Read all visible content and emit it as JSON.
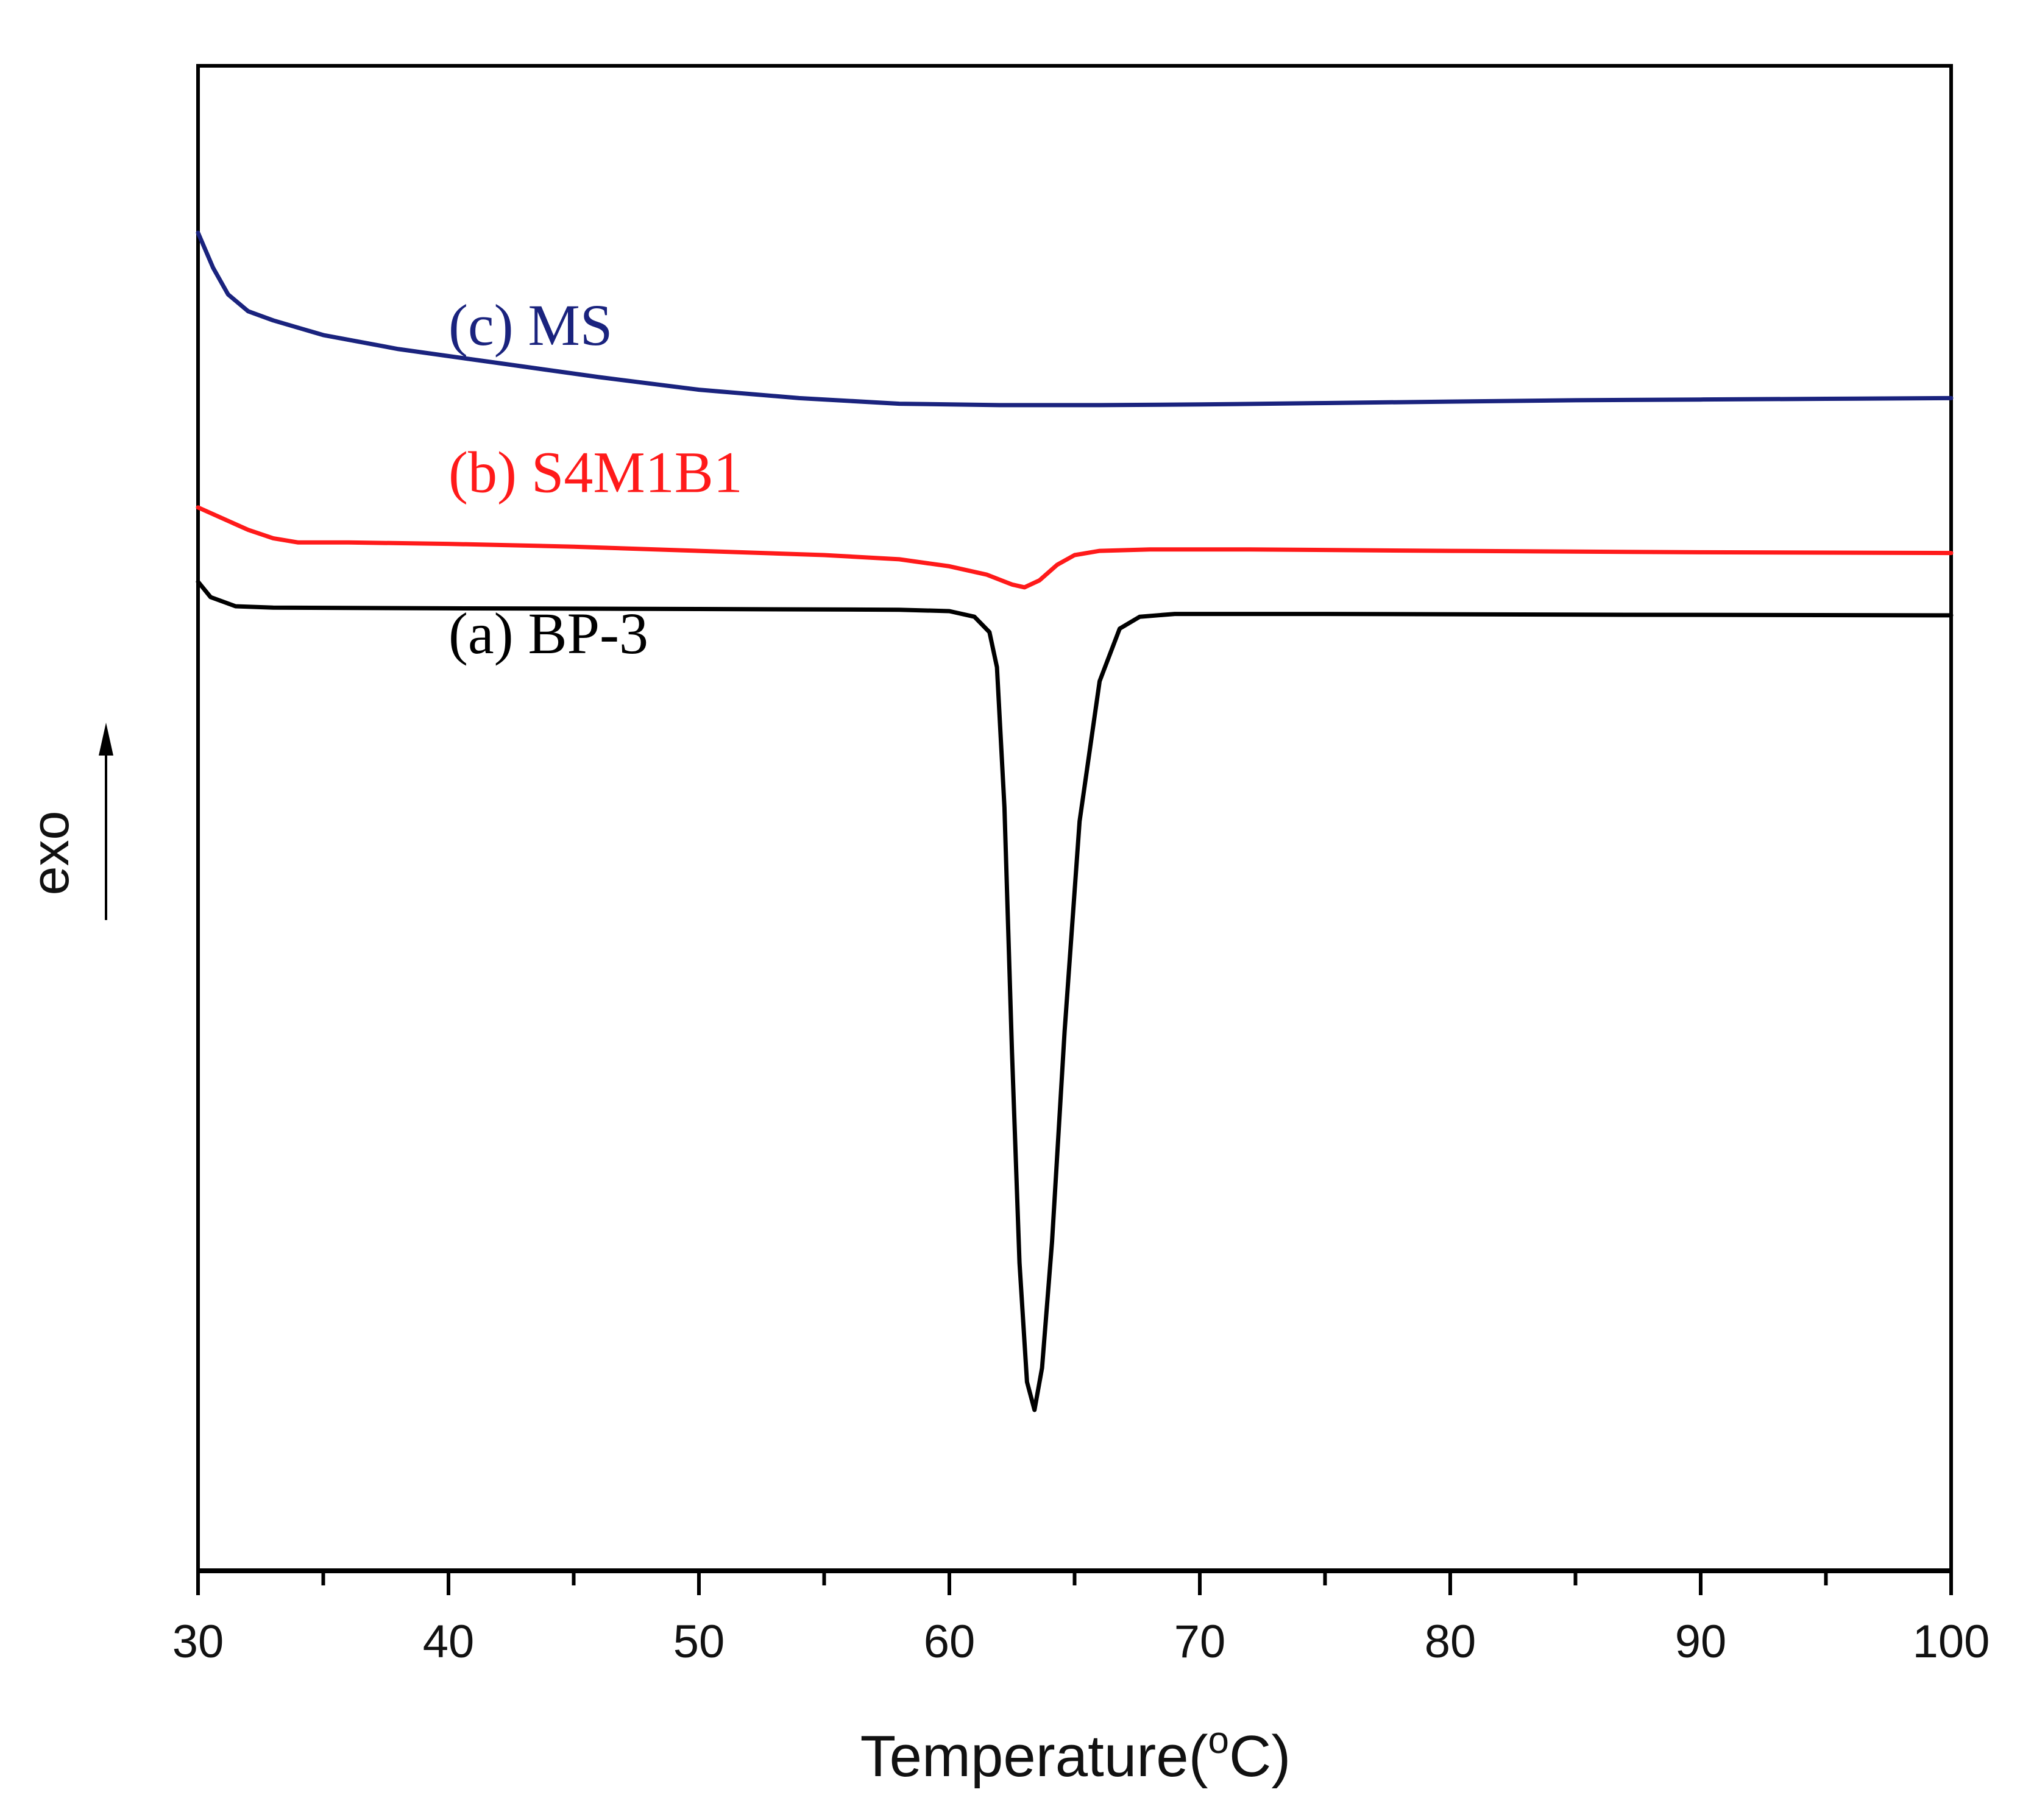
{
  "chart_data": {
    "type": "line",
    "title": "",
    "xlabel_base": "Temperature(",
    "xlabel_degree": "o",
    "xlabel_unit": "C)",
    "ylabel": "exo",
    "xlim": [
      30,
      100
    ],
    "x_ticks": [
      "30",
      "40",
      "50",
      "60",
      "70",
      "80",
      "90",
      "100"
    ],
    "y_ticks": [],
    "grid": false,
    "series": [
      {
        "key": "c",
        "name": "(c) MS",
        "color": "#1a237e",
        "label_at": [
          40,
          7.6
        ],
        "points": [
          [
            30,
            9.2
          ],
          [
            30.6,
            8.7
          ],
          [
            31.2,
            8.32
          ],
          [
            32,
            8.08
          ],
          [
            33,
            7.95
          ],
          [
            35,
            7.74
          ],
          [
            38,
            7.54
          ],
          [
            42,
            7.34
          ],
          [
            46,
            7.14
          ],
          [
            50,
            6.96
          ],
          [
            54,
            6.84
          ],
          [
            58,
            6.76
          ],
          [
            62,
            6.74
          ],
          [
            66,
            6.74
          ],
          [
            70,
            6.75
          ],
          [
            75,
            6.77
          ],
          [
            80,
            6.79
          ],
          [
            85,
            6.81
          ],
          [
            90,
            6.82
          ],
          [
            95,
            6.83
          ],
          [
            100,
            6.84
          ]
        ]
      },
      {
        "key": "b",
        "name": "(b) S4M1B1",
        "color": "#ff1a1a",
        "label_at": [
          40,
          5.5
        ],
        "points": [
          [
            30,
            5.28
          ],
          [
            31,
            5.12
          ],
          [
            32,
            4.96
          ],
          [
            33,
            4.84
          ],
          [
            34,
            4.78
          ],
          [
            36,
            4.78
          ],
          [
            40,
            4.76
          ],
          [
            45,
            4.72
          ],
          [
            50,
            4.66
          ],
          [
            55,
            4.6
          ],
          [
            58,
            4.54
          ],
          [
            60,
            4.44
          ],
          [
            61.5,
            4.32
          ],
          [
            62.5,
            4.18
          ],
          [
            63,
            4.14
          ],
          [
            63.6,
            4.24
          ],
          [
            64.3,
            4.46
          ],
          [
            65,
            4.6
          ],
          [
            66,
            4.66
          ],
          [
            68,
            4.68
          ],
          [
            72,
            4.68
          ],
          [
            80,
            4.66
          ],
          [
            90,
            4.64
          ],
          [
            100,
            4.63
          ]
        ]
      },
      {
        "key": "a",
        "name": "(a) BP-3",
        "color": "#000000",
        "label_at": [
          40,
          3.2
        ],
        "points": [
          [
            30,
            4.22
          ],
          [
            30.5,
            4.0
          ],
          [
            31.5,
            3.87
          ],
          [
            33,
            3.85
          ],
          [
            40,
            3.84
          ],
          [
            50,
            3.83
          ],
          [
            58,
            3.82
          ],
          [
            60,
            3.8
          ],
          [
            61,
            3.72
          ],
          [
            61.6,
            3.5
          ],
          [
            61.9,
            3.0
          ],
          [
            62.2,
            1.0
          ],
          [
            62.5,
            -2.5
          ],
          [
            62.8,
            -5.5
          ],
          [
            63.1,
            -7.2
          ],
          [
            63.4,
            -7.6
          ],
          [
            63.7,
            -7.0
          ],
          [
            64.1,
            -5.2
          ],
          [
            64.6,
            -2.2
          ],
          [
            65.2,
            0.8
          ],
          [
            66,
            2.8
          ],
          [
            66.8,
            3.55
          ],
          [
            67.6,
            3.72
          ],
          [
            69,
            3.76
          ],
          [
            75,
            3.76
          ],
          [
            85,
            3.75
          ],
          [
            100,
            3.74
          ]
        ]
      }
    ]
  }
}
